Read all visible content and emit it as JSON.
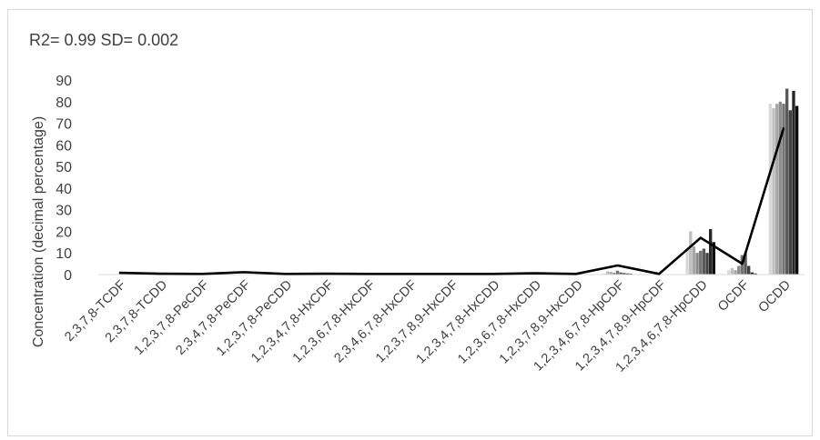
{
  "chart_data": {
    "type": "bar",
    "title": "",
    "annotation": "R2= 0.99   SD= 0.002",
    "ylabel": "Concentration (decimal percentage)",
    "xlabel": "",
    "ylim": [
      0,
      90
    ],
    "yticks": [
      0,
      10,
      20,
      30,
      40,
      50,
      60,
      70,
      80,
      90
    ],
    "grid": false,
    "legend": "none",
    "categories": [
      "2,3,7,8-TCDF",
      "2,3,7,8-TCDD",
      "1,2,3,7,8-PeCDF",
      "2,3,4,7,8-PeCDF",
      "1,2,3,7,8-PeCDD",
      "1,2,3,4,7,8-HxCDF",
      "1,2,3,6,7,8-HxCDF",
      "2,3,4,6,7,8-HxCDF",
      "1,2,3,7,8,9-HxCDF",
      "1,2,3,4,7,8-HxCDD",
      "1,2,3,6,7,8-HxCDD",
      "1,2,3,7,8,9-HxCDD",
      "1,2,3,4,6,7,8-HpCDF",
      "1,2,3,4,7,8,9-HpCDF",
      "1,2,3,4,6,7,8-HpCDD",
      "OCDF",
      "OCDD"
    ],
    "series": [
      {
        "color": "#d9d9d9",
        "values": [
          0.1,
          0,
          0,
          0.1,
          0,
          0,
          0,
          0,
          0,
          0,
          0,
          0,
          0.5,
          0,
          12,
          2,
          79
        ]
      },
      {
        "color": "#bfbfbf",
        "values": [
          0.1,
          0,
          0,
          0.1,
          0,
          0,
          0,
          0,
          0,
          0,
          0,
          0,
          1.5,
          0,
          20,
          3,
          77
        ]
      },
      {
        "color": "#a6a6a6",
        "values": [
          0.1,
          0,
          0,
          0.1,
          0,
          0,
          0,
          0,
          0,
          0,
          0,
          0,
          1.2,
          0,
          13,
          2,
          79
        ]
      },
      {
        "color": "#8c8c8c",
        "values": [
          0.1,
          0,
          0,
          0.1,
          0,
          0,
          0,
          0,
          0,
          0,
          0,
          0,
          0.8,
          0,
          10,
          4,
          80
        ]
      },
      {
        "color": "#737373",
        "values": [
          0.1,
          0,
          0,
          0.1,
          0,
          0,
          0,
          0,
          0,
          0,
          0,
          0,
          1.8,
          0,
          11,
          9,
          79
        ]
      },
      {
        "color": "#595959",
        "values": [
          0.1,
          0,
          0,
          0.1,
          0,
          0,
          0,
          0,
          0,
          0,
          0,
          0,
          1.0,
          0,
          12,
          10,
          86
        ]
      },
      {
        "color": "#404040",
        "values": [
          0.1,
          0,
          0,
          0.1,
          0,
          0,
          0,
          0,
          0,
          0,
          0,
          0,
          0.7,
          0,
          10,
          4,
          76
        ]
      },
      {
        "color": "#262626",
        "values": [
          0.1,
          0,
          0,
          0.1,
          0,
          0,
          0,
          0,
          0,
          0,
          0,
          0,
          0.5,
          0,
          21,
          1,
          85
        ]
      },
      {
        "color": "#0d0d0d",
        "values": [
          0.1,
          0,
          0,
          0.1,
          0,
          0,
          0,
          0,
          0,
          0,
          0,
          0,
          0.4,
          0,
          15,
          0.5,
          78
        ]
      }
    ],
    "line": {
      "color": "#000000",
      "values": [
        0.8,
        0.4,
        0.3,
        1.1,
        0.3,
        0.4,
        0.3,
        0.3,
        0.3,
        0.3,
        0.6,
        0.3,
        4.2,
        0.3,
        17,
        5,
        68
      ]
    }
  }
}
